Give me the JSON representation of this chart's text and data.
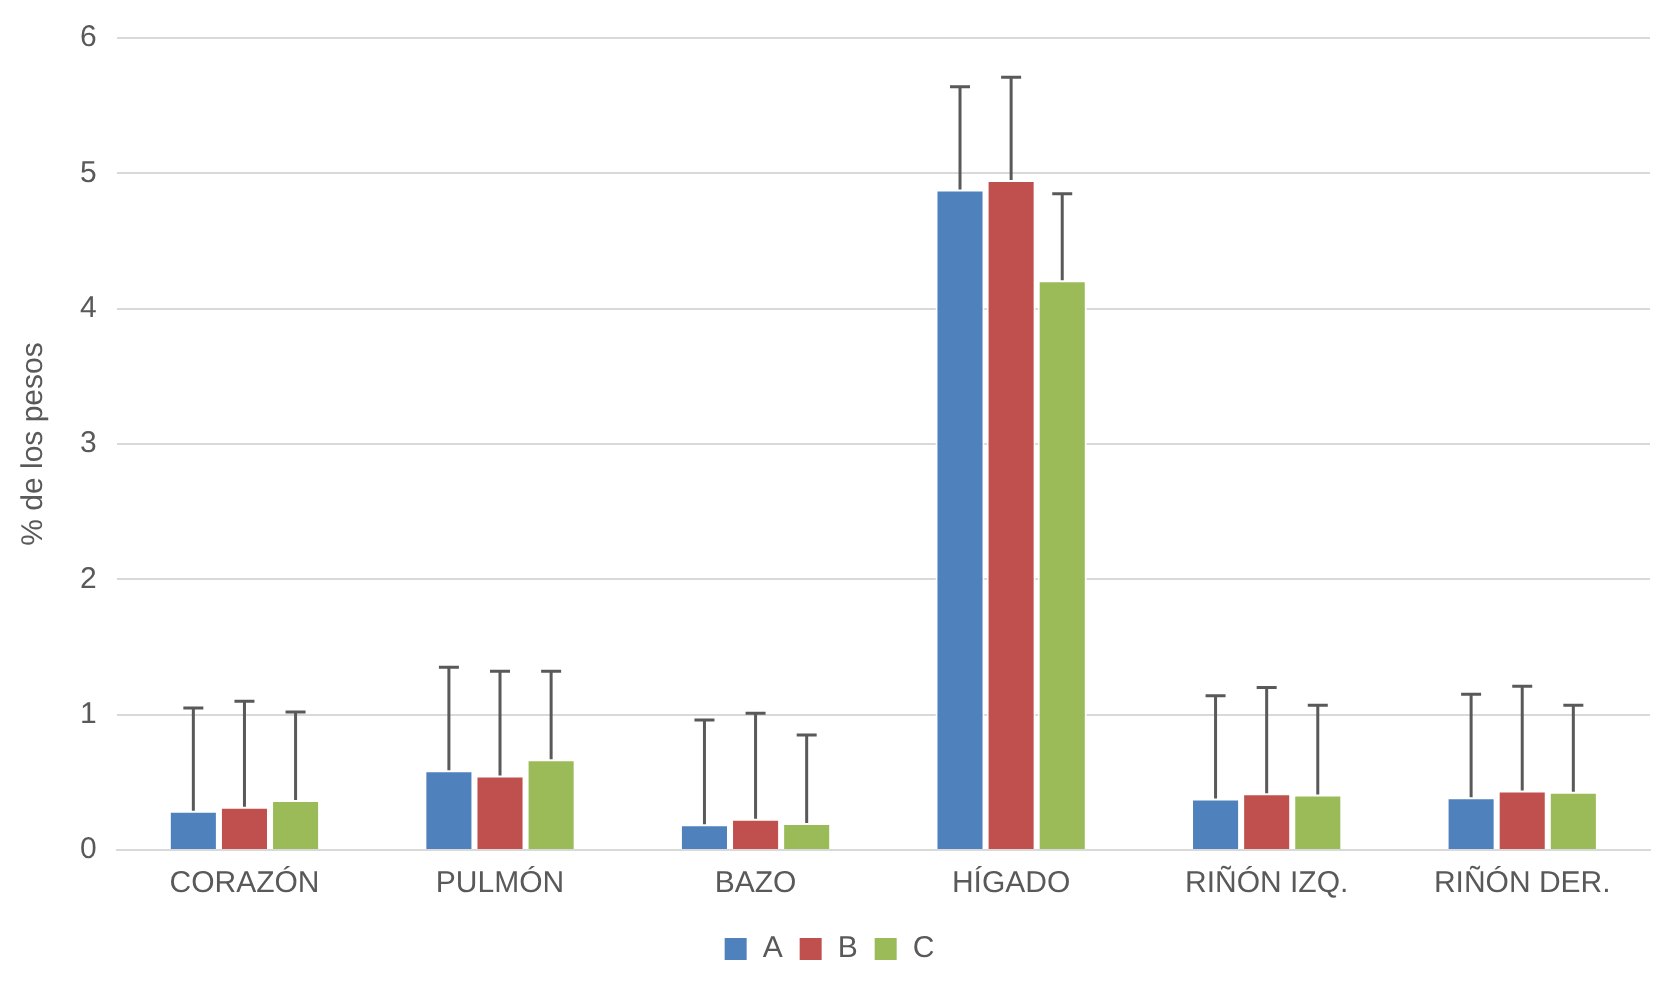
{
  "chart_data": {
    "type": "bar",
    "ylabel": "% de los pesos",
    "categories": [
      "CORAZÓN",
      "PULMÓN",
      "BAZO",
      "HÍGADO",
      "RIÑÓN IZQ.",
      "RIÑÓN DER."
    ],
    "series": [
      {
        "name": "A",
        "color": "#4f81bd",
        "values": [
          0.29,
          0.59,
          0.19,
          4.88,
          0.38,
          0.39
        ],
        "errors": [
          [
            0.29,
            1.05
          ],
          [
            0.59,
            1.35
          ],
          [
            0.19,
            0.96
          ],
          [
            4.88,
            5.64
          ],
          [
            0.38,
            1.14
          ],
          [
            0.39,
            1.15
          ]
        ]
      },
      {
        "name": "B",
        "color": "#c0504d",
        "values": [
          0.32,
          0.55,
          0.23,
          4.95,
          0.42,
          0.44
        ],
        "errors": [
          [
            0.32,
            1.1
          ],
          [
            0.55,
            1.32
          ],
          [
            0.23,
            1.01
          ],
          [
            4.95,
            5.71
          ],
          [
            0.42,
            1.2
          ],
          [
            0.44,
            1.21
          ]
        ]
      },
      {
        "name": "C",
        "color": "#9bbb59",
        "values": [
          0.37,
          0.67,
          0.2,
          4.21,
          0.41,
          0.43
        ],
        "errors": [
          [
            0.37,
            1.02
          ],
          [
            0.67,
            1.32
          ],
          [
            0.2,
            0.85
          ],
          [
            4.21,
            4.85
          ],
          [
            0.41,
            1.07
          ],
          [
            0.43,
            1.07
          ]
        ]
      }
    ],
    "ylim": [
      0,
      6
    ],
    "yticks": [
      0,
      1,
      2,
      3,
      4,
      5,
      6
    ],
    "grid": "y",
    "legend": "bottom"
  }
}
